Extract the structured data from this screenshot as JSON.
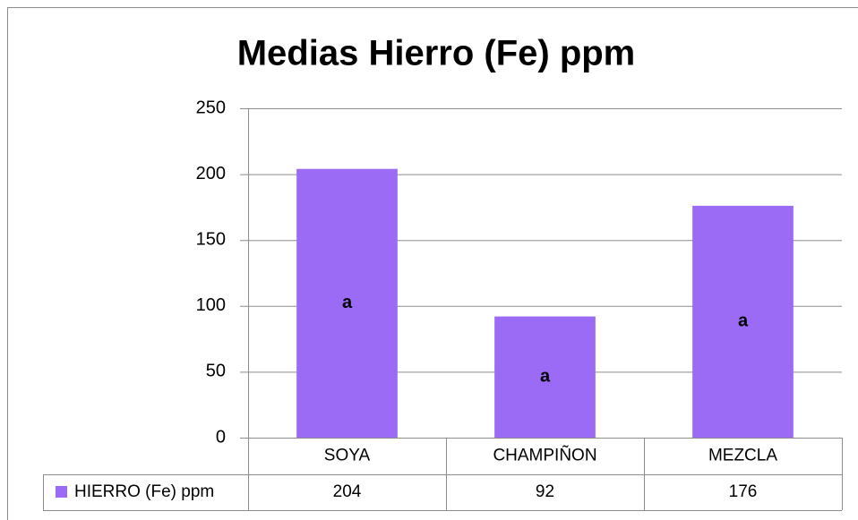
{
  "chart_data": {
    "type": "bar",
    "title": "Medias Hierro (Fe) ppm",
    "categories": [
      "SOYA",
      "CHAMPIÑON",
      "MEZCLA"
    ],
    "series": [
      {
        "name": "HIERRO (Fe) ppm",
        "color": "#9b6bf5",
        "values": [
          204,
          92,
          176
        ]
      }
    ],
    "annotations": [
      "a",
      "a",
      "a"
    ],
    "ylim": [
      0,
      250
    ],
    "yticks": [
      0,
      50,
      100,
      150,
      200,
      250
    ],
    "grid": true,
    "data_table": true
  }
}
